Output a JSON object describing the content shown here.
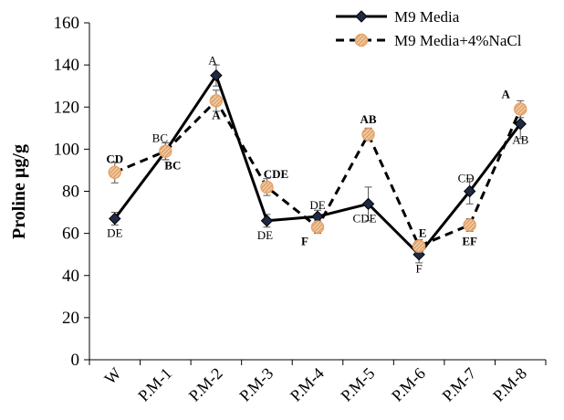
{
  "chart_data": {
    "type": "line",
    "categories": [
      "W",
      "P.M-1",
      "P.M-2",
      "P.M-3",
      "P.M-4",
      "P.M-5",
      "P.M-6",
      "P.M-7",
      "P.M-8"
    ],
    "ylabel": "Proline µg/g",
    "ylim": [
      0,
      160
    ],
    "yticks": [
      0,
      20,
      40,
      60,
      80,
      100,
      120,
      140,
      160
    ],
    "grid": false,
    "legend_position": "top-right",
    "series": [
      {
        "name": "M9 Media",
        "style": "solid",
        "color": "#000000",
        "marker": "diamond",
        "values": [
          67,
          99,
          135,
          66,
          68,
          74,
          50,
          80,
          112
        ],
        "errors": [
          3,
          4,
          5,
          3,
          3,
          8,
          4,
          6,
          7
        ],
        "labels": [
          "DE",
          "BC",
          "A",
          "DE",
          "DE",
          "CDE",
          "F",
          "CD",
          "AB"
        ]
      },
      {
        "name": "M9 Media+4%NaCl",
        "style": "dashed",
        "color": "#000000",
        "marker": "circle-hatched",
        "marker_color": "#e8a36a",
        "values": [
          89,
          99,
          123,
          82,
          63,
          107,
          54,
          64,
          119
        ],
        "errors": [
          5,
          4,
          5,
          4,
          3,
          3,
          3,
          3,
          4
        ],
        "labels": [
          "CD",
          "BC",
          "A",
          "CDE",
          "F",
          "AB",
          "E",
          "EF",
          "A"
        ]
      }
    ]
  }
}
